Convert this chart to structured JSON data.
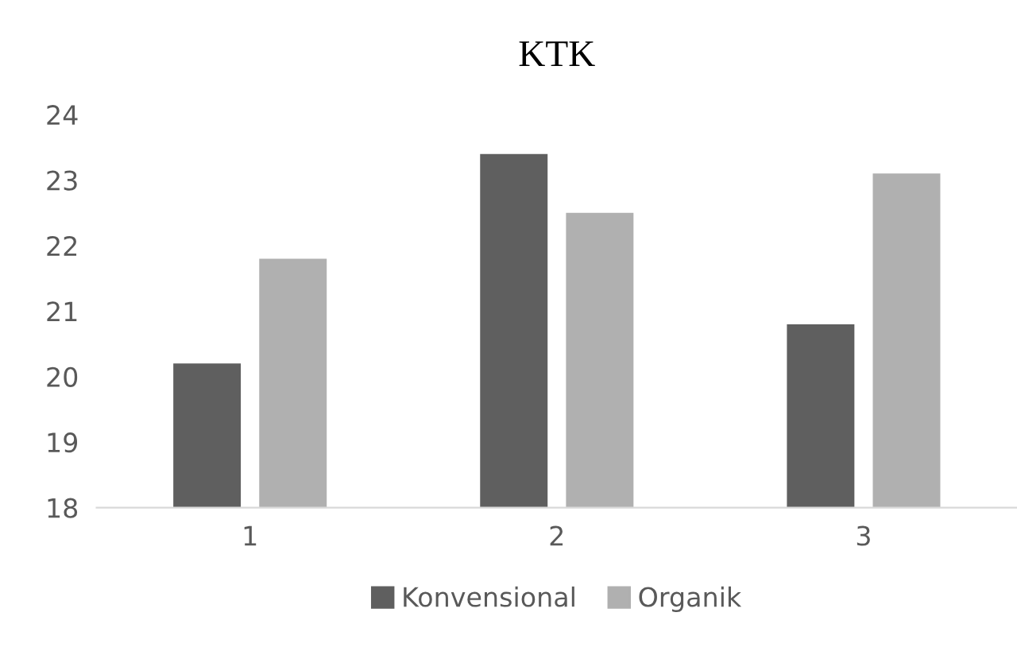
{
  "chart_data": {
    "type": "bar",
    "title": "KTK",
    "categories": [
      "1",
      "2",
      "3"
    ],
    "series": [
      {
        "name": "Konvensional",
        "color": "#5f5f5f",
        "values": [
          20.2,
          23.4,
          20.8
        ]
      },
      {
        "name": "Organik",
        "color": "#b0b0b0",
        "values": [
          21.8,
          22.5,
          23.1
        ]
      }
    ],
    "ylim": [
      18,
      24
    ],
    "yticks": [
      18,
      19,
      20,
      21,
      22,
      23,
      24
    ],
    "grid": false,
    "legend": "bottom"
  }
}
